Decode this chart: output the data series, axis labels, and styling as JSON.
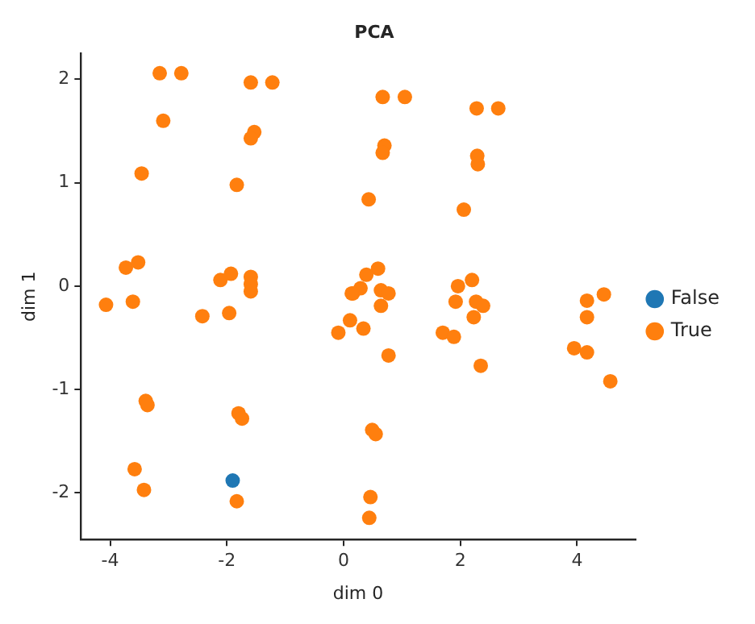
{
  "chart_data": {
    "type": "scatter",
    "title": "PCA",
    "xlabel": "dim 0",
    "ylabel": "dim 1",
    "xlim": [
      -4.5,
      5.0
    ],
    "ylim": [
      -2.45,
      2.25
    ],
    "xticks": [
      -4,
      -2,
      0,
      2,
      4
    ],
    "yticks": [
      -2,
      -1,
      0,
      1,
      2
    ],
    "grid": false,
    "legend": "right",
    "marker": "circle",
    "series": [
      {
        "name": "False",
        "color": "#1f77b4",
        "x": [
          -1.9
        ],
        "values": [
          -1.88
        ]
      },
      {
        "name": "True",
        "color": "#ff7f0e",
        "x": [
          -3.15,
          -2.78,
          -3.09,
          -3.46,
          -1.59,
          -1.22,
          -1.53,
          -1.59,
          -1.83,
          -3.73,
          -3.52,
          -4.07,
          -3.61,
          -2.11,
          -1.93,
          -1.59,
          -1.59,
          -1.59,
          -2.42,
          -1.96,
          -3.39,
          -3.36,
          -1.8,
          -1.74,
          -3.58,
          -3.42,
          -1.83,
          0.67,
          1.05,
          2.28,
          2.65,
          0.7,
          0.67,
          2.29,
          2.3,
          0.43,
          2.06,
          0.59,
          0.39,
          0.29,
          0.16,
          0.64,
          0.77,
          0.64,
          0.11,
          0.34,
          -0.09,
          0.14,
          0.77,
          0.49,
          0.55,
          0.46,
          0.44,
          2.2,
          1.96,
          1.92,
          2.27,
          2.39,
          2.23,
          1.7,
          1.89,
          2.35,
          4.17,
          4.46,
          4.17,
          3.95,
          4.17,
          4.57
        ],
        "values": [
          2.06,
          2.06,
          1.6,
          1.09,
          1.97,
          1.97,
          1.49,
          1.43,
          0.98,
          0.18,
          0.23,
          -0.18,
          -0.15,
          0.06,
          0.12,
          0.09,
          0.02,
          -0.05,
          -0.29,
          -0.26,
          -1.11,
          -1.15,
          -1.23,
          -1.28,
          -1.77,
          -1.97,
          -2.08,
          1.83,
          1.83,
          1.72,
          1.72,
          1.36,
          1.29,
          1.26,
          1.18,
          0.84,
          0.74,
          0.17,
          0.11,
          -0.02,
          -0.07,
          -0.04,
          -0.07,
          -0.19,
          -0.33,
          -0.41,
          -0.45,
          -0.07,
          -0.67,
          -1.39,
          -1.43,
          -2.04,
          -2.24,
          0.06,
          0,
          -0.15,
          -0.15,
          -0.19,
          -0.3,
          -0.45,
          -0.49,
          -0.77,
          -0.14,
          -0.08,
          -0.3,
          -0.6,
          -0.64,
          -0.92
        ]
      }
    ]
  }
}
